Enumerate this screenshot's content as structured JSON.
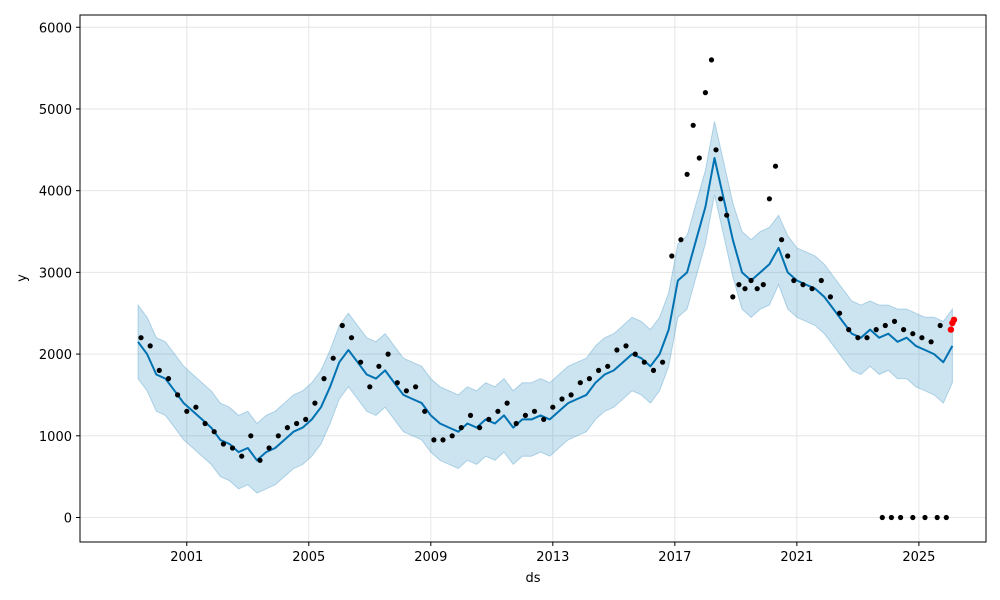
{
  "chart_data": {
    "type": "line",
    "title": "",
    "xlabel": "ds",
    "ylabel": "y",
    "xlim": [
      1997.5,
      2027.2
    ],
    "ylim": [
      -300,
      6150
    ],
    "grid": true,
    "x_ticks": [
      {
        "label": "2001",
        "value": 2001
      },
      {
        "label": "2005",
        "value": 2005
      },
      {
        "label": "2009",
        "value": 2009
      },
      {
        "label": "2013",
        "value": 2013
      },
      {
        "label": "2017",
        "value": 2017
      },
      {
        "label": "2021",
        "value": 2021
      },
      {
        "label": "2025",
        "value": 2025
      }
    ],
    "y_ticks": [
      {
        "label": "0",
        "value": 0
      },
      {
        "label": "1000",
        "value": 1000
      },
      {
        "label": "2000",
        "value": 2000
      },
      {
        "label": "3000",
        "value": 3000
      },
      {
        "label": "4000",
        "value": 4000
      },
      {
        "label": "5000",
        "value": 5000
      },
      {
        "label": "6000",
        "value": 6000
      }
    ],
    "colors": {
      "forecast": "#0072B2",
      "uncertainty": "#0072B2",
      "observed": "#000000",
      "highlight": "#FF0000",
      "grid": "#e6e6e6"
    },
    "series": [
      {
        "role": "forecast",
        "x": [
          1999.4,
          1999.7,
          2000.0,
          2000.3,
          2000.6,
          2000.9,
          2001.2,
          2001.5,
          2001.8,
          2002.1,
          2002.4,
          2002.7,
          2003.0,
          2003.3,
          2003.6,
          2003.9,
          2004.2,
          2004.5,
          2004.8,
          2005.1,
          2005.4,
          2005.7,
          2006.0,
          2006.3,
          2006.6,
          2006.9,
          2007.2,
          2007.5,
          2007.8,
          2008.1,
          2008.4,
          2008.7,
          2009.0,
          2009.3,
          2009.6,
          2009.9,
          2010.2,
          2010.5,
          2010.8,
          2011.1,
          2011.4,
          2011.7,
          2012.0,
          2012.3,
          2012.6,
          2012.9,
          2013.2,
          2013.5,
          2013.8,
          2014.1,
          2014.4,
          2014.7,
          2015.0,
          2015.3,
          2015.6,
          2015.9,
          2016.2,
          2016.5,
          2016.8,
          2017.1,
          2017.4,
          2017.7,
          2018.0,
          2018.3,
          2018.6,
          2018.9,
          2019.2,
          2019.5,
          2019.8,
          2020.1,
          2020.4,
          2020.7,
          2021.0,
          2021.3,
          2021.6,
          2021.9,
          2022.2,
          2022.5,
          2022.8,
          2023.1,
          2023.4,
          2023.7,
          2024.0,
          2024.3,
          2024.6,
          2024.9,
          2025.2,
          2025.5,
          2025.8,
          2026.1
        ],
        "values": [
          2150,
          2000,
          1750,
          1700,
          1550,
          1400,
          1300,
          1200,
          1100,
          950,
          900,
          800,
          850,
          700,
          800,
          850,
          950,
          1050,
          1100,
          1200,
          1350,
          1600,
          1900,
          2050,
          1900,
          1750,
          1700,
          1800,
          1650,
          1500,
          1450,
          1400,
          1250,
          1150,
          1100,
          1050,
          1150,
          1100,
          1200,
          1150,
          1250,
          1100,
          1200,
          1200,
          1250,
          1200,
          1300,
          1400,
          1450,
          1500,
          1650,
          1750,
          1800,
          1900,
          2000,
          1950,
          1850,
          2000,
          2300,
          2900,
          3000,
          3400,
          3800,
          4400,
          3900,
          3400,
          3000,
          2900,
          3000,
          3100,
          3300,
          3000,
          2900,
          2850,
          2800,
          2700,
          2550,
          2400,
          2250,
          2200,
          2300,
          2200,
          2250,
          2150,
          2200,
          2100,
          2050,
          2000,
          1900,
          2100
        ]
      },
      {
        "role": "uncertainty_upper",
        "x": [
          1999.4,
          1999.7,
          2000.0,
          2000.3,
          2000.6,
          2000.9,
          2001.2,
          2001.5,
          2001.8,
          2002.1,
          2002.4,
          2002.7,
          2003.0,
          2003.3,
          2003.6,
          2003.9,
          2004.2,
          2004.5,
          2004.8,
          2005.1,
          2005.4,
          2005.7,
          2006.0,
          2006.3,
          2006.6,
          2006.9,
          2007.2,
          2007.5,
          2007.8,
          2008.1,
          2008.4,
          2008.7,
          2009.0,
          2009.3,
          2009.6,
          2009.9,
          2010.2,
          2010.5,
          2010.8,
          2011.1,
          2011.4,
          2011.7,
          2012.0,
          2012.3,
          2012.6,
          2012.9,
          2013.2,
          2013.5,
          2013.8,
          2014.1,
          2014.4,
          2014.7,
          2015.0,
          2015.3,
          2015.6,
          2015.9,
          2016.2,
          2016.5,
          2016.8,
          2017.1,
          2017.4,
          2017.7,
          2018.0,
          2018.3,
          2018.6,
          2018.9,
          2019.2,
          2019.5,
          2019.8,
          2020.1,
          2020.4,
          2020.7,
          2021.0,
          2021.3,
          2021.6,
          2021.9,
          2022.2,
          2022.5,
          2022.8,
          2023.1,
          2023.4,
          2023.7,
          2024.0,
          2024.3,
          2024.6,
          2024.9,
          2025.2,
          2025.5,
          2025.8,
          2026.1
        ],
        "values": [
          2600,
          2450,
          2200,
          2150,
          2000,
          1850,
          1750,
          1650,
          1550,
          1400,
          1350,
          1250,
          1300,
          1150,
          1250,
          1300,
          1400,
          1500,
          1550,
          1650,
          1800,
          2050,
          2350,
          2500,
          2350,
          2200,
          2150,
          2250,
          2100,
          1950,
          1900,
          1850,
          1700,
          1600,
          1550,
          1500,
          1600,
          1550,
          1650,
          1600,
          1700,
          1550,
          1650,
          1650,
          1700,
          1650,
          1750,
          1850,
          1900,
          1950,
          2100,
          2200,
          2250,
          2350,
          2450,
          2400,
          2300,
          2450,
          2750,
          3350,
          3450,
          3850,
          4250,
          4850,
          4350,
          3850,
          3500,
          3400,
          3500,
          3550,
          3700,
          3450,
          3300,
          3250,
          3200,
          3100,
          2950,
          2800,
          2650,
          2600,
          2650,
          2600,
          2600,
          2550,
          2550,
          2500,
          2450,
          2450,
          2400,
          2550
        ]
      },
      {
        "role": "uncertainty_lower",
        "x": [
          1999.4,
          1999.7,
          2000.0,
          2000.3,
          2000.6,
          2000.9,
          2001.2,
          2001.5,
          2001.8,
          2002.1,
          2002.4,
          2002.7,
          2003.0,
          2003.3,
          2003.6,
          2003.9,
          2004.2,
          2004.5,
          2004.8,
          2005.1,
          2005.4,
          2005.7,
          2006.0,
          2006.3,
          2006.6,
          2006.9,
          2007.2,
          2007.5,
          2007.8,
          2008.1,
          2008.4,
          2008.7,
          2009.0,
          2009.3,
          2009.6,
          2009.9,
          2010.2,
          2010.5,
          2010.8,
          2011.1,
          2011.4,
          2011.7,
          2012.0,
          2012.3,
          2012.6,
          2012.9,
          2013.2,
          2013.5,
          2013.8,
          2014.1,
          2014.4,
          2014.7,
          2015.0,
          2015.3,
          2015.6,
          2015.9,
          2016.2,
          2016.5,
          2016.8,
          2017.1,
          2017.4,
          2017.7,
          2018.0,
          2018.3,
          2018.6,
          2018.9,
          2019.2,
          2019.5,
          2019.8,
          2020.1,
          2020.4,
          2020.7,
          2021.0,
          2021.3,
          2021.6,
          2021.9,
          2022.2,
          2022.5,
          2022.8,
          2023.1,
          2023.4,
          2023.7,
          2024.0,
          2024.3,
          2024.6,
          2024.9,
          2025.2,
          2025.5,
          2025.8,
          2026.1
        ],
        "values": [
          1700,
          1550,
          1300,
          1250,
          1100,
          950,
          850,
          750,
          650,
          500,
          450,
          350,
          400,
          300,
          350,
          400,
          500,
          600,
          650,
          750,
          900,
          1150,
          1450,
          1600,
          1450,
          1300,
          1250,
          1350,
          1200,
          1050,
          1000,
          950,
          800,
          700,
          650,
          600,
          700,
          650,
          750,
          700,
          800,
          650,
          750,
          750,
          800,
          750,
          850,
          950,
          1000,
          1050,
          1200,
          1300,
          1350,
          1450,
          1550,
          1500,
          1400,
          1550,
          1850,
          2450,
          2550,
          2950,
          3350,
          3950,
          3450,
          2950,
          2550,
          2450,
          2550,
          2600,
          2850,
          2550,
          2450,
          2400,
          2350,
          2250,
          2100,
          1950,
          1800,
          1750,
          1850,
          1750,
          1800,
          1700,
          1700,
          1600,
          1550,
          1500,
          1400,
          1650
        ]
      },
      {
        "role": "observed",
        "x": [
          1999.5,
          1999.8,
          2000.1,
          2000.4,
          2000.7,
          2001.0,
          2001.3,
          2001.6,
          2001.9,
          2002.2,
          2002.5,
          2002.8,
          2003.1,
          2003.4,
          2003.7,
          2004.0,
          2004.3,
          2004.6,
          2004.9,
          2005.2,
          2005.5,
          2005.8,
          2006.1,
          2006.4,
          2006.7,
          2007.0,
          2007.3,
          2007.6,
          2007.9,
          2008.2,
          2008.5,
          2008.8,
          2009.1,
          2009.4,
          2009.7,
          2010.0,
          2010.3,
          2010.6,
          2010.9,
          2011.2,
          2011.5,
          2011.8,
          2012.1,
          2012.4,
          2012.7,
          2013.0,
          2013.3,
          2013.6,
          2013.9,
          2014.2,
          2014.5,
          2014.8,
          2015.1,
          2015.4,
          2015.7,
          2016.0,
          2016.3,
          2016.6,
          2016.9,
          2017.2,
          2017.4,
          2017.6,
          2017.8,
          2018.0,
          2018.2,
          2018.35,
          2018.5,
          2018.7,
          2018.9,
          2019.1,
          2019.3,
          2019.5,
          2019.7,
          2019.9,
          2020.1,
          2020.3,
          2020.5,
          2020.7,
          2020.9,
          2021.2,
          2021.5,
          2021.8,
          2022.1,
          2022.4,
          2022.7,
          2023.0,
          2023.3,
          2023.6,
          2023.9,
          2024.2,
          2024.5,
          2024.8,
          2025.1,
          2025.4,
          2025.7,
          2023.8,
          2024.1,
          2024.4,
          2024.8,
          2025.2,
          2025.6,
          2025.9
        ],
        "values": [
          2200,
          2100,
          1800,
          1700,
          1500,
          1300,
          1350,
          1150,
          1050,
          900,
          850,
          750,
          1000,
          700,
          850,
          1000,
          1100,
          1150,
          1200,
          1400,
          1700,
          1950,
          2350,
          2200,
          1900,
          1600,
          1850,
          2000,
          1650,
          1550,
          1600,
          1300,
          950,
          950,
          1000,
          1100,
          1250,
          1100,
          1200,
          1300,
          1400,
          1150,
          1250,
          1300,
          1200,
          1350,
          1450,
          1500,
          1650,
          1700,
          1800,
          1850,
          2050,
          2100,
          2000,
          1900,
          1800,
          1900,
          3200,
          3400,
          4200,
          4800,
          4400,
          5200,
          5600,
          4500,
          3900,
          3700,
          2700,
          2850,
          2800,
          2900,
          2800,
          2850,
          3900,
          4300,
          3400,
          3200,
          2900,
          2850,
          2800,
          2900,
          2700,
          2500,
          2300,
          2200,
          2200,
          2300,
          2350,
          2400,
          2300,
          2250,
          2200,
          2150,
          2350,
          0,
          0,
          0,
          0,
          0,
          0,
          0
        ]
      },
      {
        "role": "highlight",
        "x": [
          2026.05,
          2026.1,
          2026.15
        ],
        "values": [
          2300,
          2380,
          2420
        ]
      }
    ]
  }
}
